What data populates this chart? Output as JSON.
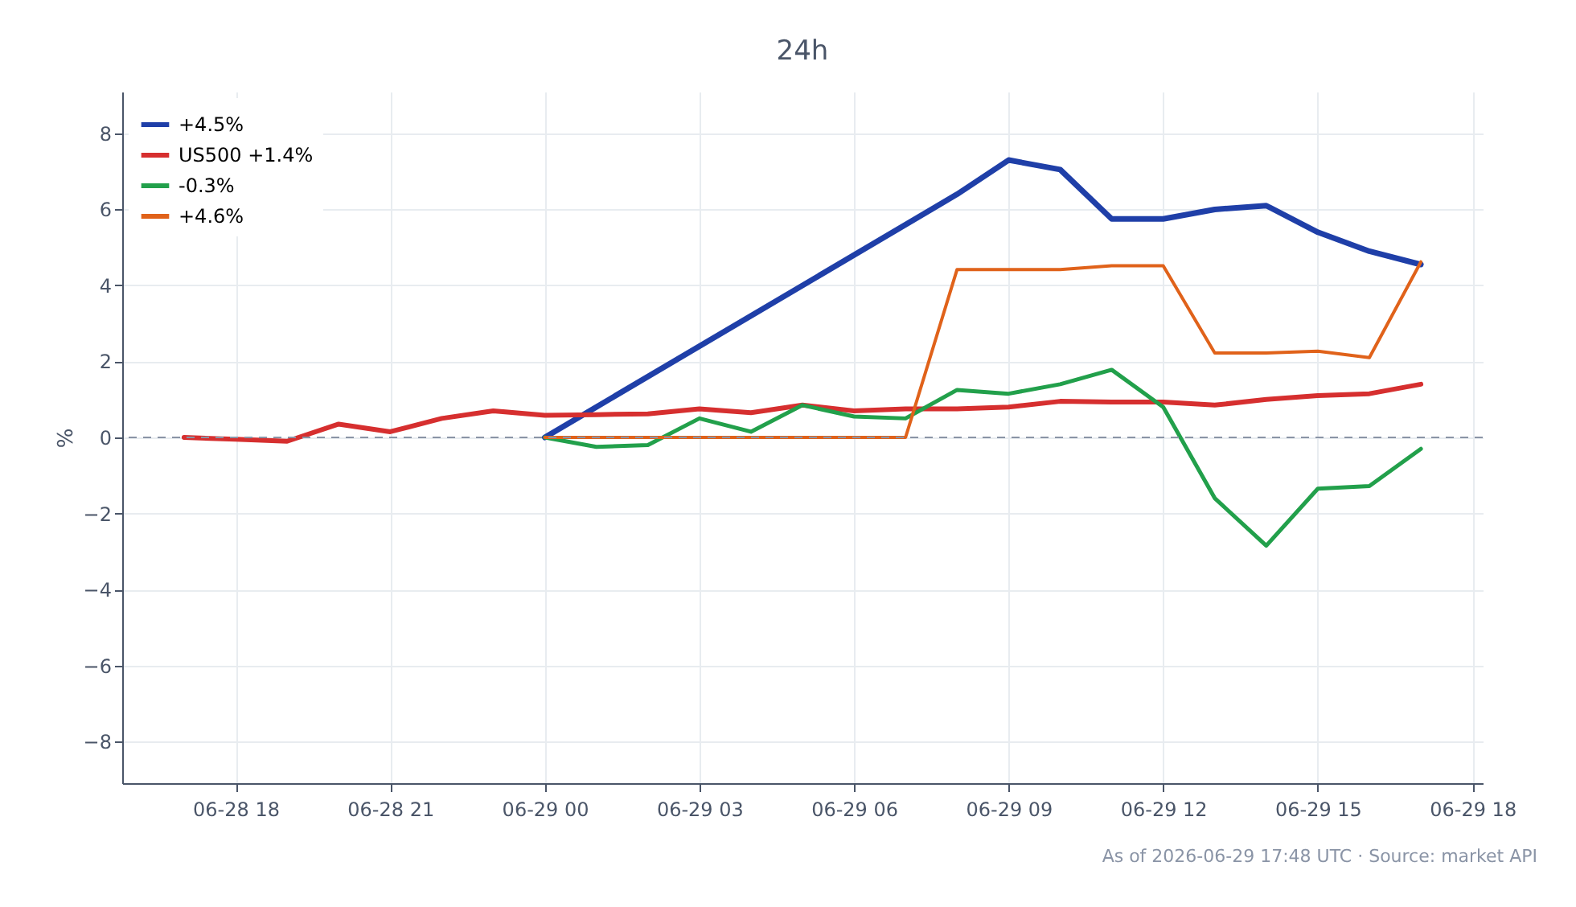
{
  "chart_data": {
    "type": "line",
    "title": "24h",
    "ylabel": "%",
    "xlim": [
      "2026-06-28T15:48",
      "2026-06-29T18:12"
    ],
    "ylim": [
      -9.1,
      9.1
    ],
    "yticks": [
      -8,
      -6,
      -4,
      -2,
      0,
      2,
      4,
      6,
      8
    ],
    "xticks": [
      {
        "value": "2026-06-28T18:00",
        "label": "06-28 18"
      },
      {
        "value": "2026-06-28T21:00",
        "label": "06-28 21"
      },
      {
        "value": "2026-06-29T00:00",
        "label": "06-29 00"
      },
      {
        "value": "2026-06-29T03:00",
        "label": "06-29 03"
      },
      {
        "value": "2026-06-29T06:00",
        "label": "06-29 06"
      },
      {
        "value": "2026-06-29T09:00",
        "label": "06-29 09"
      },
      {
        "value": "2026-06-29T12:00",
        "label": "06-29 12"
      },
      {
        "value": "2026-06-29T15:00",
        "label": "06-29 15"
      },
      {
        "value": "2026-06-29T18:00",
        "label": "06-29 18"
      }
    ],
    "grid": true,
    "legend": "top left",
    "line_style": "solid",
    "ref_lines": [
      {
        "axis": "y",
        "value": 0,
        "color": "#8a94a6",
        "line_style": "dashed"
      }
    ],
    "annotations": [
      "As of 2026-06-29 17:48 UTC · Source: market API"
    ],
    "series": [
      {
        "name": "+4.5%",
        "color": "#1f3fa8",
        "x": [
          "2026-06-29T00:00",
          "2026-06-29T08:00",
          "2026-06-29T09:00",
          "2026-06-29T10:00",
          "2026-06-29T11:00",
          "2026-06-29T12:00",
          "2026-06-29T13:00",
          "2026-06-29T14:00",
          "2026-06-29T15:00",
          "2026-06-29T16:00",
          "2026-06-29T17:00"
        ],
        "values": [
          0,
          6.4,
          7.3,
          7.05,
          5.75,
          5.75,
          6.0,
          6.1,
          5.4,
          4.9,
          4.55
        ]
      },
      {
        "name": "US500 +1.4%",
        "color": "#d62f2f",
        "x": [
          "2026-06-28T17:00",
          "2026-06-28T18:00",
          "2026-06-28T19:00",
          "2026-06-28T20:00",
          "2026-06-28T21:00",
          "2026-06-28T22:00",
          "2026-06-28T23:00",
          "2026-06-29T00:00",
          "2026-06-29T01:00",
          "2026-06-29T02:00",
          "2026-06-29T03:00",
          "2026-06-29T04:00",
          "2026-06-29T05:00",
          "2026-06-29T06:00",
          "2026-06-29T07:00",
          "2026-06-29T08:00",
          "2026-06-29T09:00",
          "2026-06-29T10:00",
          "2026-06-29T11:00",
          "2026-06-29T12:00",
          "2026-06-29T13:00",
          "2026-06-29T14:00",
          "2026-06-29T15:00",
          "2026-06-29T16:00",
          "2026-06-29T17:00"
        ],
        "values": [
          0.0,
          -0.05,
          -0.1,
          0.35,
          0.15,
          0.5,
          0.7,
          0.58,
          0.6,
          0.62,
          0.75,
          0.65,
          0.85,
          0.7,
          0.75,
          0.75,
          0.8,
          0.95,
          0.93,
          0.93,
          0.85,
          1.0,
          1.1,
          1.15,
          1.4
        ]
      },
      {
        "name": "-0.3%",
        "color": "#22a04b",
        "x": [
          "2026-06-29T00:00",
          "2026-06-29T01:00",
          "2026-06-29T02:00",
          "2026-06-29T03:00",
          "2026-06-29T04:00",
          "2026-06-29T05:00",
          "2026-06-29T06:00",
          "2026-06-29T07:00",
          "2026-06-29T08:00",
          "2026-06-29T09:00",
          "2026-06-29T10:00",
          "2026-06-29T11:00",
          "2026-06-29T12:00",
          "2026-06-29T13:00",
          "2026-06-29T14:00",
          "2026-06-29T15:00",
          "2026-06-29T16:00",
          "2026-06-29T17:00"
        ],
        "values": [
          0,
          -0.25,
          -0.2,
          0.5,
          0.15,
          0.85,
          0.55,
          0.5,
          1.25,
          1.15,
          1.4,
          1.78,
          0.8,
          -1.6,
          -2.85,
          -1.35,
          -1.28,
          -0.3
        ]
      },
      {
        "name": "+4.6%",
        "color": "#e0621a",
        "x": [
          "2026-06-29T00:00",
          "2026-06-29T07:00",
          "2026-06-29T08:00",
          "2026-06-29T09:00",
          "2026-06-29T10:00",
          "2026-06-29T11:00",
          "2026-06-29T12:00",
          "2026-06-29T13:00",
          "2026-06-29T14:00",
          "2026-06-29T15:00",
          "2026-06-29T16:00",
          "2026-06-29T17:00"
        ],
        "values": [
          0,
          0,
          4.42,
          4.42,
          4.42,
          4.52,
          4.52,
          2.22,
          2.22,
          2.27,
          2.1,
          4.62
        ]
      }
    ]
  }
}
